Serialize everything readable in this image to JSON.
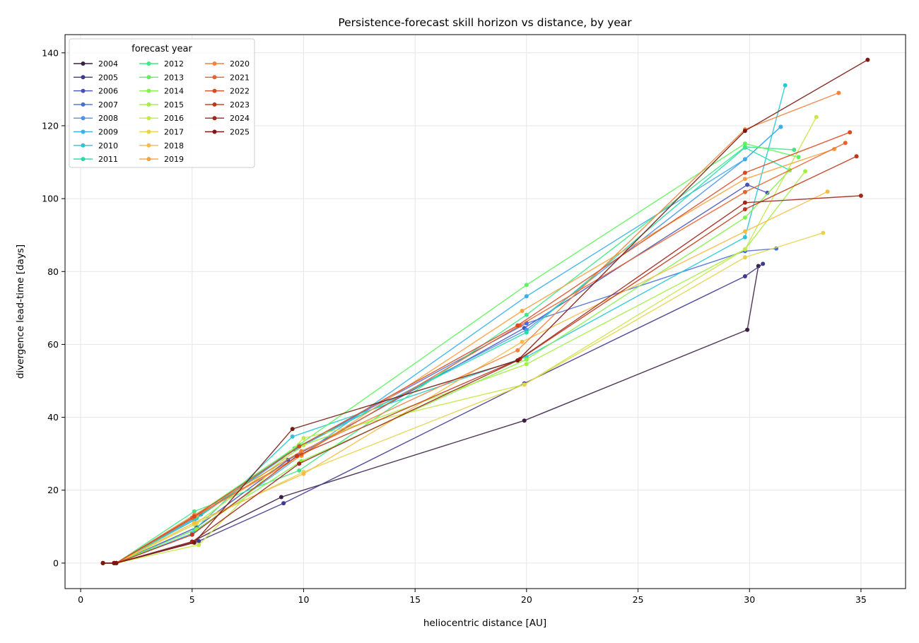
{
  "chart_data": {
    "type": "line",
    "title": "Persistence-forecast skill horizon vs distance, by year",
    "xlabel": "heliocentric distance [AU]",
    "ylabel": "divergence lead-time [days]",
    "xlim": [
      -0.7,
      37
    ],
    "ylim": [
      -7,
      145
    ],
    "xticks": [
      0,
      5,
      10,
      15,
      20,
      25,
      30,
      35
    ],
    "yticks": [
      0,
      20,
      40,
      60,
      80,
      100,
      120,
      140
    ],
    "grid": true,
    "legend": {
      "title": "forecast year",
      "placement": "top-left",
      "columns": 3
    },
    "series": [
      {
        "name": "2004",
        "color": "#3b1f45",
        "points": [
          [
            1.0,
            0
          ],
          [
            1.5,
            0
          ],
          [
            1.6,
            0
          ],
          [
            5.0,
            5.9
          ],
          [
            9.0,
            18.1
          ],
          [
            19.9,
            39.1
          ],
          [
            29.9,
            64.0
          ],
          [
            30.4,
            81.5
          ]
        ]
      },
      {
        "name": "2005",
        "color": "#3f3a8e",
        "points": [
          [
            1.0,
            0
          ],
          [
            1.5,
            0
          ],
          [
            1.6,
            0
          ],
          [
            5.3,
            6.0
          ],
          [
            9.1,
            16.4
          ],
          [
            19.9,
            49.3
          ],
          [
            29.8,
            78.7
          ],
          [
            30.6,
            82.1
          ]
        ]
      },
      {
        "name": "2006",
        "color": "#4652b8",
        "points": [
          [
            1.0,
            0
          ],
          [
            1.5,
            0
          ],
          [
            1.6,
            0
          ],
          [
            5.2,
            9.8
          ],
          [
            9.3,
            28.3
          ],
          [
            19.9,
            64.5
          ],
          [
            29.9,
            103.8
          ],
          [
            30.8,
            101.6
          ]
        ]
      },
      {
        "name": "2007",
        "color": "#4a6ed8",
        "points": [
          [
            1.0,
            0
          ],
          [
            1.5,
            0
          ],
          [
            1.6,
            0
          ],
          [
            5.4,
            13.4
          ],
          [
            9.6,
            31.2
          ],
          [
            20.0,
            65.8
          ],
          [
            29.8,
            85.6
          ],
          [
            31.2,
            86.3
          ]
        ]
      },
      {
        "name": "2008",
        "color": "#4a93f0",
        "points": [
          [
            1.0,
            0
          ],
          [
            1.5,
            0
          ],
          [
            1.6,
            0
          ],
          [
            5.1,
            11.8
          ],
          [
            9.7,
            31.5
          ],
          [
            20.0,
            64.0
          ],
          [
            29.8,
            110.8
          ],
          [
            31.4,
            119.7
          ]
        ]
      },
      {
        "name": "2009",
        "color": "#3aafe8",
        "points": [
          [
            1.0,
            0
          ],
          [
            1.5,
            0
          ],
          [
            1.6,
            0
          ],
          [
            5.0,
            8.1
          ],
          [
            9.9,
            29.6
          ],
          [
            20.0,
            73.2
          ],
          [
            29.8,
            110.8
          ],
          [
            31.4,
            119.7
          ]
        ]
      },
      {
        "name": "2010",
        "color": "#25c9d5",
        "points": [
          [
            1.0,
            0
          ],
          [
            1.5,
            0
          ],
          [
            1.6,
            0
          ],
          [
            5.1,
            9.1
          ],
          [
            9.5,
            34.7
          ],
          [
            20.0,
            56.6
          ],
          [
            29.8,
            89.4
          ],
          [
            31.6,
            131.1
          ]
        ]
      },
      {
        "name": "2011",
        "color": "#22dcaa",
        "points": [
          [
            1.0,
            0
          ],
          [
            1.5,
            0
          ],
          [
            1.6,
            0
          ],
          [
            5.2,
            12.3
          ],
          [
            9.6,
            31.5
          ],
          [
            20.0,
            63.3
          ],
          [
            29.8,
            114.0
          ],
          [
            31.8,
            107.8
          ]
        ]
      },
      {
        "name": "2012",
        "color": "#3de88a",
        "points": [
          [
            1.0,
            0
          ],
          [
            1.5,
            0
          ],
          [
            1.6,
            0
          ],
          [
            5.1,
            14.2
          ],
          [
            9.8,
            25.4
          ],
          [
            20.0,
            68.1
          ],
          [
            29.8,
            114.2
          ],
          [
            32.0,
            113.4
          ]
        ]
      },
      {
        "name": "2013",
        "color": "#5cf45c",
        "points": [
          [
            1.0,
            0
          ],
          [
            1.5,
            0
          ],
          [
            1.6,
            0
          ],
          [
            5.0,
            12.5
          ],
          [
            9.8,
            32.5
          ],
          [
            20.0,
            76.3
          ],
          [
            29.8,
            115.1
          ],
          [
            32.2,
            111.4
          ]
        ]
      },
      {
        "name": "2014",
        "color": "#84f24a",
        "points": [
          [
            1.0,
            0
          ],
          [
            1.5,
            0
          ],
          [
            1.6,
            0
          ],
          [
            5.2,
            9.3
          ],
          [
            9.9,
            28.0
          ],
          [
            20.0,
            55.9
          ],
          [
            29.8,
            94.8
          ],
          [
            31.8,
            107.8
          ]
        ]
      },
      {
        "name": "2015",
        "color": "#a5ee43",
        "points": [
          [
            1.0,
            0
          ],
          [
            1.5,
            0
          ],
          [
            1.6,
            0
          ],
          [
            5.1,
            10.6
          ],
          [
            10.0,
            32.4
          ],
          [
            20.0,
            54.6
          ],
          [
            29.8,
            86.1
          ],
          [
            32.5,
            107.5
          ]
        ]
      },
      {
        "name": "2016",
        "color": "#c7e84a",
        "points": [
          [
            1.0,
            0
          ],
          [
            1.5,
            0
          ],
          [
            1.6,
            0
          ],
          [
            5.3,
            5.0
          ],
          [
            10.0,
            34.3
          ],
          [
            19.9,
            49.0
          ],
          [
            29.8,
            86.1
          ],
          [
            33.0,
            122.4
          ]
        ]
      },
      {
        "name": "2017",
        "color": "#e7d44e",
        "points": [
          [
            1.0,
            0
          ],
          [
            1.5,
            0
          ],
          [
            1.6,
            0
          ],
          [
            5.2,
            10.9
          ],
          [
            10.0,
            25.0
          ],
          [
            19.9,
            49.0
          ],
          [
            29.8,
            83.9
          ],
          [
            33.3,
            90.6
          ]
        ]
      },
      {
        "name": "2018",
        "color": "#f6bc45",
        "points": [
          [
            1.0,
            0
          ],
          [
            1.5,
            0
          ],
          [
            1.6,
            0
          ],
          [
            5.1,
            11.1
          ],
          [
            10.0,
            24.5
          ],
          [
            19.8,
            60.7
          ],
          [
            29.8,
            91.0
          ],
          [
            33.5,
            101.9
          ]
        ]
      },
      {
        "name": "2019",
        "color": "#f9a03d",
        "points": [
          [
            1.0,
            0
          ],
          [
            1.5,
            0
          ],
          [
            1.6,
            0
          ],
          [
            5.2,
            13.0
          ],
          [
            9.9,
            29.4
          ],
          [
            19.8,
            69.2
          ],
          [
            29.8,
            105.4
          ],
          [
            33.8,
            113.6
          ]
        ]
      },
      {
        "name": "2020",
        "color": "#f4823a",
        "points": [
          [
            1.0,
            0
          ],
          [
            1.5,
            0
          ],
          [
            1.6,
            0
          ],
          [
            5.1,
            13.2
          ],
          [
            9.9,
            30.7
          ],
          [
            19.6,
            58.4
          ],
          [
            29.8,
            119.0
          ],
          [
            34.0,
            129.0
          ]
        ]
      },
      {
        "name": "2021",
        "color": "#e8622c",
        "points": [
          [
            1.0,
            0
          ],
          [
            1.5,
            0
          ],
          [
            1.6,
            0
          ],
          [
            5.0,
            12.4
          ],
          [
            9.9,
            29.8
          ],
          [
            19.7,
            65.2
          ],
          [
            29.8,
            101.8
          ],
          [
            34.3,
            115.3
          ]
        ]
      },
      {
        "name": "2022",
        "color": "#d84b22",
        "points": [
          [
            1.0,
            0
          ],
          [
            1.5,
            0
          ],
          [
            1.6,
            0
          ],
          [
            5.1,
            12.8
          ],
          [
            9.8,
            32.0
          ],
          [
            19.6,
            65.2
          ],
          [
            29.8,
            107.1
          ],
          [
            34.5,
            118.2
          ]
        ]
      },
      {
        "name": "2023",
        "color": "#c0361a",
        "points": [
          [
            1.0,
            0
          ],
          [
            1.5,
            0
          ],
          [
            1.6,
            0
          ],
          [
            5.0,
            7.8
          ],
          [
            9.7,
            29.4
          ],
          [
            19.7,
            56.0
          ],
          [
            29.8,
            97.1
          ],
          [
            34.8,
            111.6
          ]
        ]
      },
      {
        "name": "2024",
        "color": "#a0261a",
        "points": [
          [
            1.0,
            0
          ],
          [
            1.5,
            0
          ],
          [
            1.6,
            0
          ],
          [
            5.0,
            5.8
          ],
          [
            9.8,
            27.3
          ],
          [
            19.6,
            55.6
          ],
          [
            29.8,
            98.9
          ],
          [
            35.0,
            100.8
          ]
        ]
      },
      {
        "name": "2025",
        "color": "#7a1912",
        "points": [
          [
            1.0,
            0
          ],
          [
            1.5,
            0
          ],
          [
            1.6,
            0
          ],
          [
            5.1,
            5.6
          ],
          [
            9.5,
            36.8
          ],
          [
            19.6,
            55.6
          ],
          [
            29.8,
            118.6
          ],
          [
            35.3,
            138.1
          ]
        ]
      }
    ]
  }
}
